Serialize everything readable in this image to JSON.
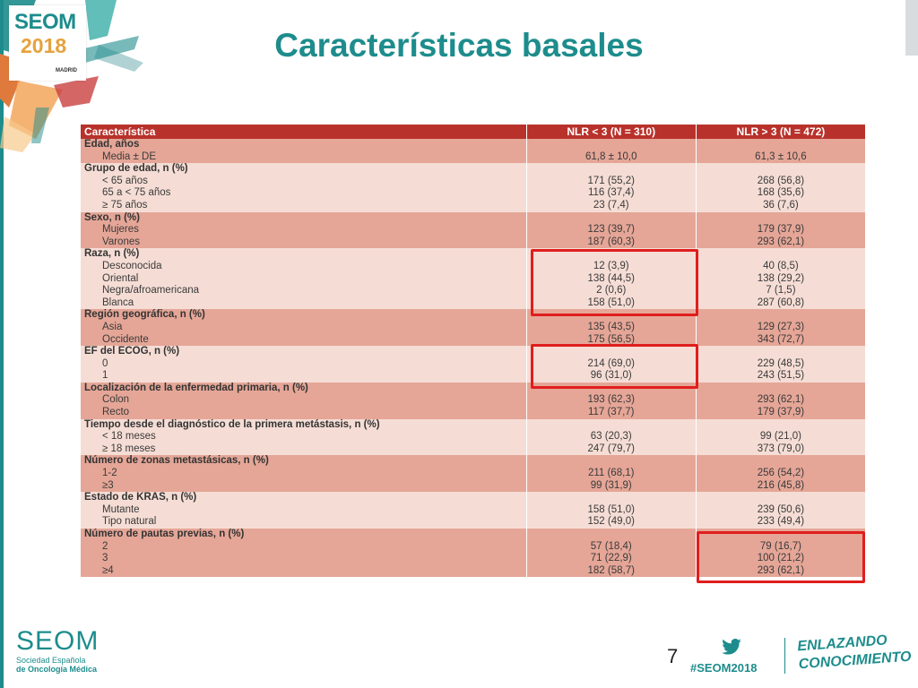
{
  "header": {
    "logo_text": "SEOM",
    "logo_year": "2018",
    "logo_city": "MADRID",
    "title": "Características basales"
  },
  "table": {
    "columns": [
      "Característica",
      "NLR < 3 (N = 310)",
      "NLR > 3 (N = 472)"
    ],
    "groups": [
      {
        "label": "Edad, años",
        "rows": [
          [
            "Media ± DE",
            "61,8 ± 10,0",
            "61,3 ± 10,6"
          ]
        ]
      },
      {
        "label": "Grupo de edad, n (%)",
        "rows": [
          [
            "< 65 años",
            "171 (55,2)",
            "268 (56,8)"
          ],
          [
            "65 a < 75 años",
            "116 (37,4)",
            "168 (35,6)"
          ],
          [
            "≥ 75 años",
            "23 (7,4)",
            "36 (7,6)"
          ]
        ]
      },
      {
        "label": "Sexo, n (%)",
        "rows": [
          [
            "Mujeres",
            "123 (39,7)",
            "179 (37,9)"
          ],
          [
            "Varones",
            "187 (60,3)",
            "293 (62,1)"
          ]
        ]
      },
      {
        "label": "Raza, n (%)",
        "rows": [
          [
            "Desconocida",
            "12 (3,9)",
            "40 (8,5)"
          ],
          [
            "Oriental",
            "138 (44,5)",
            "138 (29,2)"
          ],
          [
            "Negra/afroamericana",
            "2 (0,6)",
            "7 (1,5)"
          ],
          [
            "Blanca",
            "158 (51,0)",
            "287 (60,8)"
          ]
        ]
      },
      {
        "label": "Región geográfica, n (%)",
        "rows": [
          [
            "Asia",
            "135 (43,5)",
            "129 (27,3)"
          ],
          [
            "Occidente",
            "175 (56,5)",
            "343 (72,7)"
          ]
        ]
      },
      {
        "label": "EF del ECOG, n (%)",
        "rows": [
          [
            "0",
            "214 (69,0)",
            "229 (48,5)"
          ],
          [
            "1",
            "96 (31,0)",
            "243 (51,5)"
          ]
        ]
      },
      {
        "label": "Localización de la enfermedad primaria, n (%)",
        "rows": [
          [
            "Colon",
            "193 (62,3)",
            "293 (62,1)"
          ],
          [
            "Recto",
            "117 (37,7)",
            "179 (37,9)"
          ]
        ]
      },
      {
        "label": "Tiempo desde el diagnóstico de la primera metástasis, n (%)",
        "rows": [
          [
            "< 18 meses",
            "63 (20,3)",
            "99 (21,0)"
          ],
          [
            "≥ 18 meses",
            "247 (79,7)",
            "373 (79,0)"
          ]
        ]
      },
      {
        "label": "Número de zonas metastásicas, n (%)",
        "rows": [
          [
            "1-2",
            "211 (68,1)",
            "256 (54,2)"
          ],
          [
            "≥3",
            "99 (31,9)",
            "216 (45,8)"
          ]
        ]
      },
      {
        "label": "Estado de KRAS, n (%)",
        "rows": [
          [
            "Mutante",
            "158 (51,0)",
            "239 (50,6)"
          ],
          [
            "Tipo natural",
            "152 (49,0)",
            "233 (49,4)"
          ]
        ]
      },
      {
        "label": "Número de pautas previas, n (%)",
        "rows": [
          [
            "2",
            "57 (18,4)",
            "79 (16,7)"
          ],
          [
            "3",
            "71 (22,9)",
            "100 (21,2)"
          ],
          [
            "≥4",
            "182 (58,7)",
            "293 (62,1)"
          ]
        ]
      }
    ]
  },
  "footer": {
    "seom_word": "SEOM",
    "seom_line1": "Sociedad Española",
    "seom_line2": "de Oncología Médica",
    "page_number": "7",
    "hashtag": "#SEOM2018",
    "slogan_line1": "ENLAZANDO",
    "slogan_line2": "CONOCIMIENTO"
  },
  "colors": {
    "accent": "#1e8c8c",
    "header_row": "#b8322b",
    "dark_row": "#e5a697",
    "light_row": "#f5ddd5",
    "highlight_box": "#e01d1d"
  }
}
